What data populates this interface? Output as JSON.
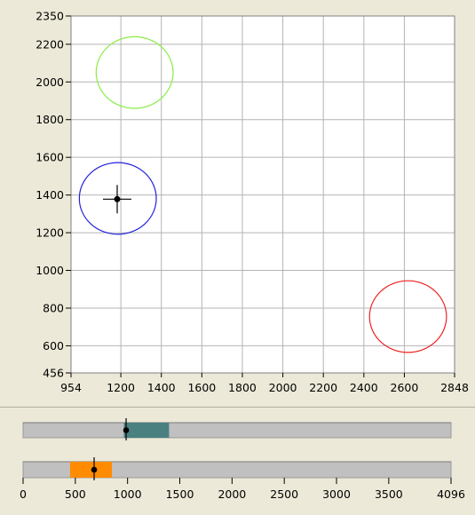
{
  "chart_data": {
    "type": "scatter",
    "title": "",
    "xlabel": "",
    "ylabel": "",
    "xlim": [
      954,
      2848
    ],
    "ylim": [
      456,
      2350
    ],
    "x_ticks": [
      954,
      1200,
      1400,
      1600,
      1800,
      2000,
      2200,
      2400,
      2600,
      2848
    ],
    "y_ticks": [
      2350,
      2200,
      2000,
      1800,
      1600,
      1400,
      1200,
      1000,
      800,
      600,
      456
    ],
    "grid": true,
    "circles": [
      {
        "color": "#88ee44",
        "cx": 1268,
        "cy": 2050,
        "r": 190
      },
      {
        "color": "#2222dd",
        "cx": 1185,
        "cy": 1382,
        "r": 190
      },
      {
        "color": "#ee2222",
        "cx": 2618,
        "cy": 755,
        "r": 190
      }
    ],
    "marker": {
      "x": 1182,
      "y": 1378,
      "color": "#000000"
    }
  },
  "slider_top": {
    "range": [
      1400,
      1600
    ],
    "value": 1410,
    "fill_color": "#4a8080",
    "min": 954,
    "max": 2848
  },
  "slider_bottom": {
    "range": [
      450,
      850
    ],
    "value": 680,
    "fill_color": "#ff8c00",
    "min": 0,
    "max": 4096,
    "ticks": [
      0,
      500,
      1000,
      1500,
      2000,
      2500,
      3000,
      3500,
      4096
    ]
  }
}
